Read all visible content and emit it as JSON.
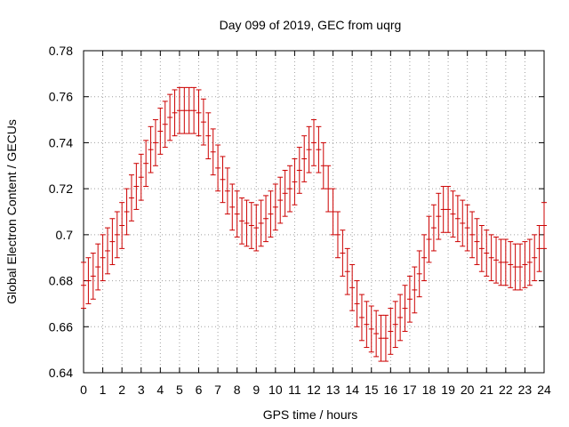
{
  "chart_data": {
    "type": "scatter",
    "title": "Day 099 of 2019, GEC from uqrg",
    "xlabel": "GPS time / hours",
    "ylabel": "Global Electron Content / GECUs",
    "xlim": [
      0,
      24
    ],
    "ylim": [
      0.64,
      0.78
    ],
    "grid": true,
    "x_ticks": [
      "0",
      "1",
      "2",
      "3",
      "4",
      "5",
      "6",
      "7",
      "8",
      "9",
      "10",
      "11",
      "12",
      "13",
      "14",
      "15",
      "16",
      "17",
      "18",
      "19",
      "20",
      "21",
      "22",
      "23",
      "24"
    ],
    "y_ticks": [
      "0.64",
      "0.66",
      "0.68",
      "0.7",
      "0.72",
      "0.74",
      "0.76",
      "0.78"
    ],
    "series": [
      {
        "name": "GEC",
        "color": "#cc0000",
        "error": 0.01,
        "x": [
          0.0,
          0.25,
          0.5,
          0.75,
          1.0,
          1.25,
          1.5,
          1.75,
          2.0,
          2.25,
          2.5,
          2.75,
          3.0,
          3.25,
          3.5,
          3.75,
          4.0,
          4.25,
          4.5,
          4.75,
          5.0,
          5.25,
          5.5,
          5.75,
          6.0,
          6.25,
          6.5,
          6.75,
          7.0,
          7.25,
          7.5,
          7.75,
          8.0,
          8.25,
          8.5,
          8.75,
          9.0,
          9.25,
          9.5,
          9.75,
          10.0,
          10.25,
          10.5,
          10.75,
          11.0,
          11.25,
          11.5,
          11.75,
          12.0,
          12.25,
          12.5,
          12.75,
          13.0,
          13.25,
          13.5,
          13.75,
          14.0,
          14.25,
          14.5,
          14.75,
          15.0,
          15.25,
          15.5,
          15.75,
          16.0,
          16.25,
          16.5,
          16.75,
          17.0,
          17.25,
          17.5,
          17.75,
          18.0,
          18.25,
          18.5,
          18.75,
          19.0,
          19.25,
          19.5,
          19.75,
          20.0,
          20.25,
          20.5,
          20.75,
          21.0,
          21.25,
          21.5,
          21.75,
          22.0,
          22.25,
          22.5,
          22.75,
          23.0,
          23.25,
          23.5,
          23.75,
          24.0
        ],
        "y": [
          0.678,
          0.68,
          0.682,
          0.686,
          0.69,
          0.693,
          0.697,
          0.7,
          0.704,
          0.71,
          0.716,
          0.721,
          0.725,
          0.731,
          0.737,
          0.74,
          0.745,
          0.748,
          0.751,
          0.753,
          0.754,
          0.754,
          0.754,
          0.754,
          0.753,
          0.749,
          0.743,
          0.736,
          0.729,
          0.724,
          0.719,
          0.712,
          0.709,
          0.706,
          0.705,
          0.704,
          0.703,
          0.705,
          0.707,
          0.709,
          0.712,
          0.715,
          0.718,
          0.72,
          0.723,
          0.728,
          0.733,
          0.737,
          0.74,
          0.737,
          0.73,
          0.72,
          0.71,
          0.7,
          0.692,
          0.684,
          0.677,
          0.67,
          0.664,
          0.661,
          0.659,
          0.657,
          0.655,
          0.655,
          0.658,
          0.661,
          0.664,
          0.668,
          0.672,
          0.676,
          0.683,
          0.69,
          0.698,
          0.703,
          0.708,
          0.711,
          0.711,
          0.709,
          0.707,
          0.705,
          0.703,
          0.7,
          0.697,
          0.694,
          0.692,
          0.69,
          0.689,
          0.688,
          0.688,
          0.687,
          0.686,
          0.686,
          0.687,
          0.688,
          0.69,
          0.694,
          0.704
        ]
      }
    ]
  }
}
